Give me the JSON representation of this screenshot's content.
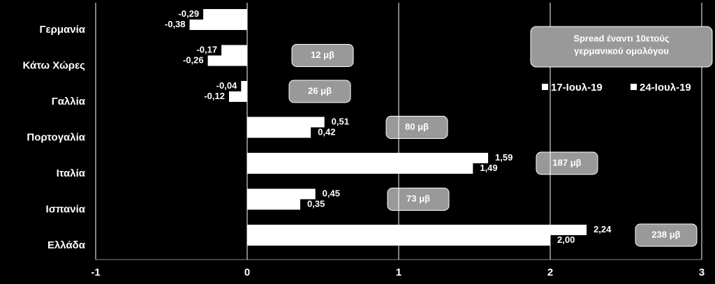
{
  "chart_data": {
    "type": "hbar",
    "categories": [
      "Γερμανία",
      "Κάτω Χώρες",
      "Γαλλία",
      "Πορτογαλία",
      "Ιταλία",
      "Ισπανία",
      "Ελλάδα"
    ],
    "series": [
      {
        "name": "17-Ιουλ-19",
        "color": "#ffffff",
        "values": [
          -0.29,
          -0.17,
          -0.04,
          0.51,
          1.59,
          0.45,
          2.24
        ],
        "value_labels": [
          "-0,29",
          "-0,17",
          "-0,04",
          "0,51",
          "1,59",
          "0,45",
          "2,24"
        ]
      },
      {
        "name": "24-Ιουλ-19",
        "color": "#ffffff",
        "values": [
          -0.38,
          -0.26,
          -0.12,
          0.42,
          1.49,
          0.35,
          2.0
        ],
        "value_labels": [
          "-0,38",
          "-0,26",
          "-0,12",
          "0,42",
          "1,49",
          "0,35",
          "2,00"
        ]
      }
    ],
    "spread_title": [
      "Spread έναντι 10ετούς",
      "γερμανικού ομολόγου"
    ],
    "spread_labels": [
      null,
      "12 μβ",
      "26 μβ",
      "80 μβ",
      "187 μβ",
      "73 μβ",
      "238 μβ"
    ],
    "xlim": [
      -1,
      3
    ],
    "xticks": [
      -1,
      0,
      1,
      2,
      3
    ],
    "grid": true
  }
}
